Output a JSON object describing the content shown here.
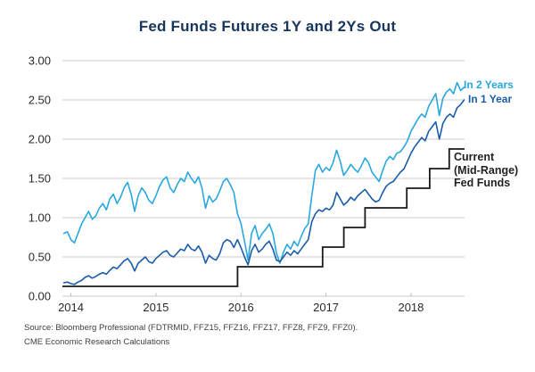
{
  "title": "Fed Funds Futures 1Y and 2Ys Out",
  "source_line1": "Source: Bloomberg Professional (FDTRMID, FFZ15, FFZ16, FFZ17, FFZ8, FFZ9, FFZ0).",
  "source_line2": "CME Economic Research Calculations",
  "legend": {
    "in_2_years": "In 2 Years",
    "in_1_year": "In 1 Year",
    "current_line1": "Current",
    "current_line2": "(Mid-Range)",
    "current_line3": "Fed Funds"
  },
  "colors": {
    "in_2_years": "#29A8DF",
    "in_1_year": "#1A5CA8",
    "fed_funds_step": "#1A1A1A",
    "current_label": "#231F20",
    "grid": "#CBCBCB",
    "tick": "#B9B9B9",
    "title_text": "#17365D",
    "axis_text": "#2B2B2B"
  },
  "chart_data": {
    "type": "line",
    "title": "Fed Funds Futures 1Y and 2Ys Out",
    "xlabel": "",
    "ylabel": "",
    "xlim": [
      2013.9,
      2018.63
    ],
    "ylim": [
      0,
      3
    ],
    "grid": true,
    "legend_position": "inline-right",
    "x_ticks": [
      {
        "v": 2014,
        "label": "2014"
      },
      {
        "v": 2015,
        "label": "2015"
      },
      {
        "v": 2016,
        "label": "2016"
      },
      {
        "v": 2017,
        "label": "2017"
      },
      {
        "v": 2018,
        "label": "2018"
      }
    ],
    "y_ticks": [
      {
        "v": 0.0,
        "label": "0.00"
      },
      {
        "v": 0.5,
        "label": "0.50"
      },
      {
        "v": 1.0,
        "label": "1.00"
      },
      {
        "v": 1.5,
        "label": "1.50"
      },
      {
        "v": 2.0,
        "label": "2.00"
      },
      {
        "v": 2.5,
        "label": "2.50"
      },
      {
        "v": 3.0,
        "label": "3.00"
      }
    ],
    "x_start": 2013.9167,
    "x_step": 0.0416667,
    "series": [
      {
        "name": "In 2 Years",
        "color_key": "in_2_years",
        "values": [
          0.8,
          0.82,
          0.72,
          0.68,
          0.8,
          0.92,
          1.0,
          1.08,
          0.98,
          1.02,
          1.12,
          1.18,
          1.1,
          1.24,
          1.3,
          1.18,
          1.26,
          1.38,
          1.45,
          1.3,
          1.08,
          1.28,
          1.38,
          1.32,
          1.22,
          1.18,
          1.28,
          1.4,
          1.48,
          1.52,
          1.38,
          1.32,
          1.42,
          1.5,
          1.46,
          1.58,
          1.5,
          1.44,
          1.52,
          1.38,
          1.12,
          1.28,
          1.2,
          1.24,
          1.34,
          1.46,
          1.5,
          1.42,
          1.32,
          1.05,
          0.93,
          0.7,
          0.46,
          0.8,
          0.9,
          0.72,
          0.8,
          0.85,
          0.92,
          0.8,
          0.55,
          0.42,
          0.56,
          0.66,
          0.6,
          0.7,
          0.64,
          0.76,
          0.86,
          0.92,
          1.28,
          1.6,
          1.68,
          1.58,
          1.64,
          1.6,
          1.7,
          1.86,
          1.72,
          1.54,
          1.6,
          1.68,
          1.62,
          1.58,
          1.66,
          1.76,
          1.7,
          1.58,
          1.52,
          1.46,
          1.6,
          1.72,
          1.78,
          1.74,
          1.82,
          1.84,
          1.9,
          1.98,
          2.1,
          2.18,
          2.26,
          2.32,
          2.28,
          2.42,
          2.5,
          2.58,
          2.3,
          2.52,
          2.6,
          2.64,
          2.58,
          2.72,
          2.62,
          2.66
        ]
      },
      {
        "name": "In 1 Year",
        "color_key": "in_1_year",
        "values": [
          0.17,
          0.18,
          0.16,
          0.15,
          0.18,
          0.2,
          0.24,
          0.26,
          0.23,
          0.25,
          0.28,
          0.3,
          0.28,
          0.33,
          0.37,
          0.35,
          0.4,
          0.45,
          0.48,
          0.42,
          0.32,
          0.42,
          0.46,
          0.5,
          0.44,
          0.42,
          0.48,
          0.52,
          0.56,
          0.58,
          0.52,
          0.5,
          0.55,
          0.6,
          0.58,
          0.66,
          0.6,
          0.58,
          0.64,
          0.56,
          0.42,
          0.52,
          0.48,
          0.46,
          0.54,
          0.68,
          0.72,
          0.7,
          0.62,
          0.72,
          0.62,
          0.5,
          0.4,
          0.58,
          0.66,
          0.56,
          0.6,
          0.66,
          0.7,
          0.6,
          0.46,
          0.44,
          0.5,
          0.56,
          0.52,
          0.58,
          0.54,
          0.6,
          0.66,
          0.72,
          0.95,
          1.05,
          1.1,
          1.08,
          1.12,
          1.1,
          1.16,
          1.32,
          1.24,
          1.16,
          1.2,
          1.26,
          1.22,
          1.28,
          1.32,
          1.36,
          1.3,
          1.24,
          1.2,
          1.22,
          1.32,
          1.4,
          1.44,
          1.46,
          1.52,
          1.58,
          1.62,
          1.72,
          1.82,
          1.9,
          1.96,
          2.02,
          1.98,
          2.1,
          2.16,
          2.22,
          2.0,
          2.2,
          2.28,
          2.32,
          2.28,
          2.4,
          2.44,
          2.5
        ]
      }
    ],
    "step_series": {
      "name": "Current (Mid-Range) Fed Funds",
      "color_key": "fed_funds_step",
      "points": [
        [
          2013.9,
          0.125
        ],
        [
          2015.96,
          0.375
        ],
        [
          2016.96,
          0.625
        ],
        [
          2017.21,
          0.875
        ],
        [
          2017.46,
          1.125
        ],
        [
          2017.95,
          1.375
        ],
        [
          2018.22,
          1.625
        ],
        [
          2018.45,
          1.875
        ],
        [
          2018.63,
          1.875
        ]
      ]
    }
  }
}
